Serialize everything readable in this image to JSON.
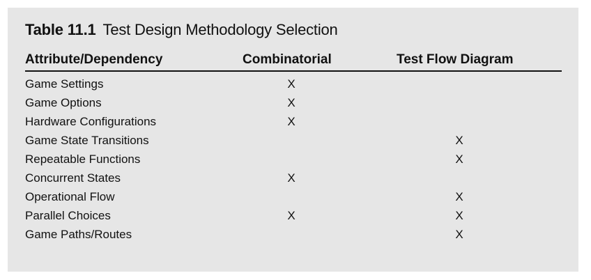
{
  "table": {
    "number": "Table 11.1",
    "title": "Test Design Methodology Selection",
    "columns": [
      "Attribute/Dependency",
      "Combinatorial",
      "Test Flow Diagram"
    ],
    "rows": [
      {
        "attribute": "Game Settings",
        "combinatorial": "X",
        "test_flow_diagram": ""
      },
      {
        "attribute": "Game Options",
        "combinatorial": "X",
        "test_flow_diagram": ""
      },
      {
        "attribute": "Hardware Configurations",
        "combinatorial": "X",
        "test_flow_diagram": ""
      },
      {
        "attribute": "Game State Transitions",
        "combinatorial": "",
        "test_flow_diagram": "X"
      },
      {
        "attribute": "Repeatable Functions",
        "combinatorial": "",
        "test_flow_diagram": "X"
      },
      {
        "attribute": "Concurrent States",
        "combinatorial": "X",
        "test_flow_diagram": ""
      },
      {
        "attribute": "Operational Flow",
        "combinatorial": "",
        "test_flow_diagram": "X"
      },
      {
        "attribute": "Parallel Choices",
        "combinatorial": "X",
        "test_flow_diagram": "X"
      },
      {
        "attribute": "Game Paths/Routes",
        "combinatorial": "",
        "test_flow_diagram": "X"
      }
    ]
  }
}
